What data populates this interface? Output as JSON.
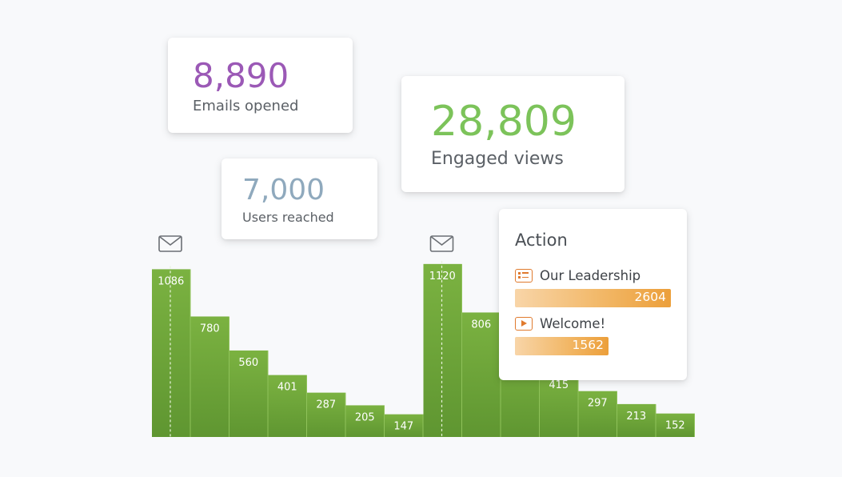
{
  "stats": {
    "emails": {
      "value": "8,890",
      "label": "Emails opened",
      "color": "#9b59b6"
    },
    "views": {
      "value": "28,809",
      "label": "Engaged views",
      "color": "#7cc35a"
    },
    "users": {
      "value": "7,000",
      "label": "Users reached",
      "color": "#8fa9bd"
    }
  },
  "chart_data": {
    "type": "bar",
    "bar_color": "#6fa53a",
    "series": [
      {
        "values": [
          1086,
          780,
          560,
          401,
          287,
          205,
          147
        ]
      },
      {
        "values": [
          1120,
          806,
          null,
          415,
          297,
          213,
          152
        ]
      }
    ],
    "markers": [
      {
        "icon": "envelope-icon",
        "at_bar": 0
      },
      {
        "icon": "envelope-icon",
        "at_bar": 7
      }
    ]
  },
  "action": {
    "title": "Action",
    "max": 2604,
    "items": [
      {
        "icon": "list-icon",
        "name": "Our Leadership",
        "value": 2604
      },
      {
        "icon": "play-icon",
        "name": "Welcome!",
        "value": 1562
      }
    ]
  }
}
